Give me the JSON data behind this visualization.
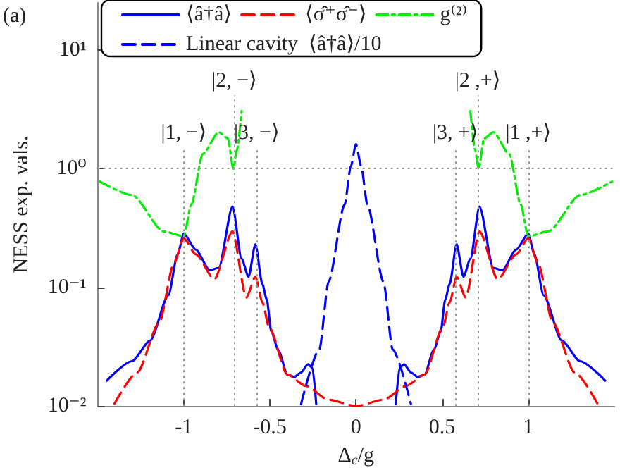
{
  "chart_data": {
    "type": "line",
    "xlabel": "Δ$_{c}$/g",
    "ylabel": "NESS exp. vals.",
    "annotations": [
      "(a)"
    ],
    "xlim": [
      -1.5,
      1.5
    ],
    "xticks": [
      -1,
      -0.5,
      0,
      0.5,
      1
    ],
    "ylim": [
      0.01,
      25
    ],
    "log": "y",
    "yticks": [
      {
        "value": 0.01,
        "label": "10⁻²"
      },
      {
        "value": 0.1,
        "label": "10⁻¹"
      },
      {
        "value": 1,
        "label": "10⁰"
      },
      {
        "value": 10,
        "label": "10¹"
      }
    ],
    "grid": false,
    "legend": "top",
    "marker": "none",
    "ref_lines": [
      {
        "axis": "x",
        "value": -1,
        "label": "|1, −⟩",
        "color": "#999999",
        "line_style": "dotted"
      },
      {
        "axis": "x",
        "value": -0.707,
        "label": "|2, −⟩",
        "color": "#999999",
        "line_style": "dotted"
      },
      {
        "axis": "x",
        "value": -0.577,
        "label": "|3, −⟩",
        "color": "#999999",
        "line_style": "dotted"
      },
      {
        "axis": "x",
        "value": 0.577,
        "label": "|3, +⟩",
        "color": "#999999",
        "line_style": "dotted"
      },
      {
        "axis": "x",
        "value": 0.707,
        "label": "|2 ,+⟩",
        "color": "#999999",
        "line_style": "dotted"
      },
      {
        "axis": "x",
        "value": 1,
        "label": "|1 ,+⟩",
        "color": "#999999",
        "line_style": "dotted"
      },
      {
        "axis": "y",
        "value": 1,
        "color": "#999999",
        "line_style": "dotted"
      }
    ],
    "series": [
      {
        "name": "⟨â†â⟩",
        "color": "#0000ff",
        "line_style": "solid",
        "x": [
          -1.447,
          -1.301,
          -1.195,
          -1.089,
          -1.036,
          -1.0,
          -0.93,
          -0.85,
          -0.797,
          -0.717,
          -0.664,
          -0.624,
          -0.584,
          -0.544,
          -0.518,
          -0.492,
          -0.452,
          -0.398,
          -0.359,
          -0.319,
          -0.279,
          -0.253,
          -0.231,
          0,
          0.231,
          0.253,
          0.279,
          0.319,
          0.359,
          0.398,
          0.452,
          0.492,
          0.518,
          0.544,
          0.584,
          0.624,
          0.664,
          0.717,
          0.797,
          0.85,
          0.93,
          1.0,
          1.036,
          1.089,
          1.195,
          1.301,
          1.447
        ],
        "values": [
          0.0164,
          0.0239,
          0.0356,
          0.086,
          0.19,
          0.283,
          0.208,
          0.14,
          0.146,
          0.48,
          0.174,
          0.123,
          0.231,
          0.107,
          0.079,
          0.0425,
          0.0298,
          0.0184,
          0.0176,
          0.0192,
          0.0225,
          0.021,
          0.0104,
          null,
          0.0104,
          0.021,
          0.0225,
          0.0192,
          0.0176,
          0.0184,
          0.0298,
          0.0425,
          0.079,
          0.107,
          0.231,
          0.123,
          0.174,
          0.48,
          0.146,
          0.14,
          0.208,
          0.283,
          0.19,
          0.086,
          0.0356,
          0.0239,
          0.0164
        ]
      },
      {
        "name": "⟨σ̂⁺σ̂⁻⟩",
        "color": "#ff0000",
        "line_style": "dashed",
        "x": [
          -1.402,
          -1.27,
          -1.142,
          -1.057,
          -1.0,
          -0.93,
          -0.823,
          -0.717,
          -0.637,
          -0.584,
          -0.544,
          -0.505,
          -0.398,
          -0.292,
          -0.159,
          0,
          0.159,
          0.292,
          0.398,
          0.505,
          0.544,
          0.584,
          0.637,
          0.717,
          0.823,
          0.93,
          1.0,
          1.057,
          1.142,
          1.27,
          1.402
        ],
        "values": [
          0.0105,
          0.0192,
          0.0507,
          0.16,
          0.259,
          0.19,
          0.117,
          0.296,
          0.082,
          0.123,
          0.075,
          0.0464,
          0.0184,
          0.0148,
          0.0113,
          0.01,
          0.0113,
          0.0148,
          0.0184,
          0.0464,
          0.075,
          0.123,
          0.082,
          0.296,
          0.117,
          0.19,
          0.259,
          0.16,
          0.0507,
          0.0192,
          0.0105
        ]
      },
      {
        "name": "g⁽²⁾",
        "color": "#00ee00",
        "line_style": "dashdot",
        "x": [
          -1.487,
          -1.301,
          -1.116,
          -1.0,
          -0.956,
          -0.89,
          -0.797,
          -0.744,
          -0.712,
          -0.691,
          -0.664,
          0,
          0.664,
          0.691,
          0.712,
          0.744,
          0.797,
          0.89,
          0.956,
          1.0,
          1.116,
          1.301,
          1.487
        ],
        "values": [
          0.78,
          0.6,
          0.296,
          0.27,
          0.5,
          1.33,
          2.03,
          1.8,
          1.0,
          1.45,
          3.06,
          null,
          3.06,
          1.45,
          1.0,
          1.8,
          2.03,
          1.33,
          0.5,
          0.27,
          0.296,
          0.6,
          0.78
        ]
      },
      {
        "name": "Linear cavity  ⟨â†â⟩/10",
        "color": "#0000ff",
        "line_style": "dashed",
        "x": [
          -0.319,
          -0.213,
          -0.159,
          -0.066,
          -0.03,
          0,
          0.03,
          0.066,
          0.159,
          0.213,
          0.319
        ],
        "values": [
          0.0104,
          0.03,
          0.112,
          0.5,
          1.05,
          1.61,
          1.05,
          0.5,
          0.112,
          0.03,
          0.0104
        ]
      }
    ]
  }
}
